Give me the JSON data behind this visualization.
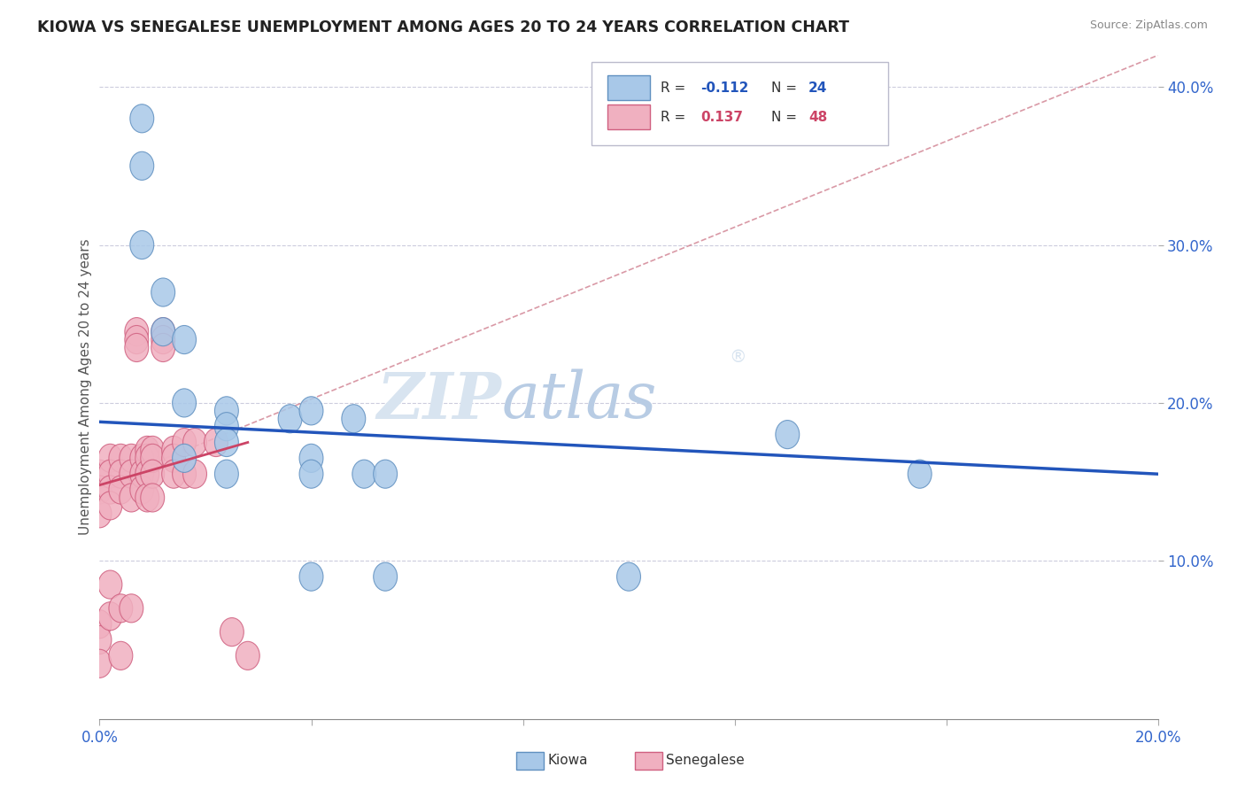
{
  "title": "KIOWA VS SENEGALESE UNEMPLOYMENT AMONG AGES 20 TO 24 YEARS CORRELATION CHART",
  "source": "Source: ZipAtlas.com",
  "ylabel": "Unemployment Among Ages 20 to 24 years",
  "xlim": [
    0.0,
    0.2
  ],
  "ylim": [
    0.0,
    0.42
  ],
  "xticks": [
    0.0,
    0.04,
    0.08,
    0.12,
    0.16,
    0.2
  ],
  "yticks": [
    0.1,
    0.2,
    0.3,
    0.4
  ],
  "kiowa_color": "#a8c8e8",
  "kiowa_edge_color": "#6090c0",
  "senegalese_color": "#f0b0c0",
  "senegalese_edge_color": "#d06080",
  "blue_line_color": "#2255bb",
  "pink_line_color": "#cc4466",
  "dashed_line_color": "#d08090",
  "watermark_color": "#d8e4f0",
  "background_color": "#ffffff",
  "kiowa_x": [
    0.008,
    0.008,
    0.008,
    0.012,
    0.012,
    0.016,
    0.016,
    0.016,
    0.024,
    0.024,
    0.024,
    0.024,
    0.036,
    0.04,
    0.04,
    0.04,
    0.04,
    0.048,
    0.05,
    0.054,
    0.054,
    0.1,
    0.13,
    0.155
  ],
  "kiowa_y": [
    0.38,
    0.35,
    0.3,
    0.27,
    0.245,
    0.24,
    0.2,
    0.165,
    0.195,
    0.185,
    0.175,
    0.155,
    0.19,
    0.195,
    0.165,
    0.155,
    0.09,
    0.19,
    0.155,
    0.155,
    0.09,
    0.09,
    0.18,
    0.155
  ],
  "senegalese_x": [
    0.0,
    0.0,
    0.0,
    0.0,
    0.0,
    0.0,
    0.002,
    0.002,
    0.002,
    0.002,
    0.002,
    0.002,
    0.004,
    0.004,
    0.004,
    0.004,
    0.004,
    0.006,
    0.006,
    0.006,
    0.006,
    0.007,
    0.007,
    0.007,
    0.008,
    0.008,
    0.008,
    0.009,
    0.009,
    0.009,
    0.009,
    0.01,
    0.01,
    0.01,
    0.01,
    0.012,
    0.012,
    0.012,
    0.014,
    0.014,
    0.014,
    0.016,
    0.016,
    0.018,
    0.018,
    0.022,
    0.025,
    0.028
  ],
  "senegalese_y": [
    0.155,
    0.145,
    0.13,
    0.06,
    0.05,
    0.035,
    0.165,
    0.155,
    0.145,
    0.135,
    0.085,
    0.065,
    0.165,
    0.155,
    0.145,
    0.07,
    0.04,
    0.165,
    0.155,
    0.14,
    0.07,
    0.245,
    0.24,
    0.235,
    0.165,
    0.155,
    0.145,
    0.17,
    0.165,
    0.155,
    0.14,
    0.17,
    0.165,
    0.155,
    0.14,
    0.245,
    0.24,
    0.235,
    0.17,
    0.165,
    0.155,
    0.175,
    0.155,
    0.175,
    0.155,
    0.175,
    0.055,
    0.04
  ],
  "blue_line_x": [
    0.0,
    0.2
  ],
  "blue_line_y": [
    0.188,
    0.155
  ],
  "pink_line_x": [
    0.0,
    0.028
  ],
  "pink_line_y": [
    0.148,
    0.175
  ],
  "dashed_line_x": [
    0.0,
    0.2
  ],
  "dashed_line_y": [
    0.148,
    0.42
  ]
}
